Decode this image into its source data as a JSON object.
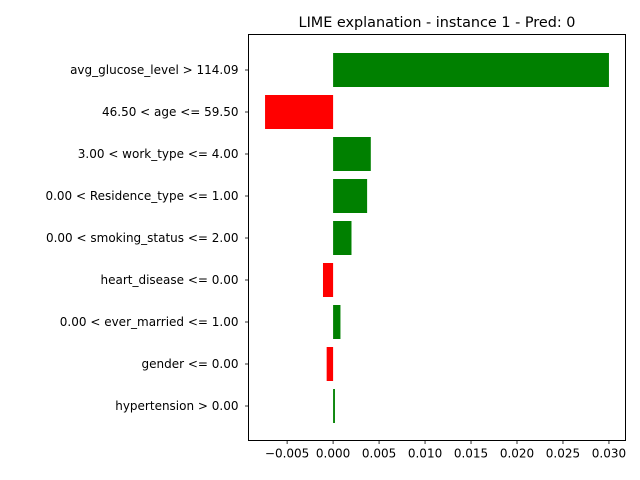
{
  "chart_data": {
    "type": "bar",
    "orientation": "horizontal",
    "title": "LIME explanation - instance 1 - Pred: 0",
    "xlabel": "",
    "ylabel": "",
    "xlim": [
      -0.0092,
      0.0318
    ],
    "grid": false,
    "categories": [
      "avg_glucose_level > 114.09",
      "46.50 < age <= 59.50",
      "3.00 < work_type <= 4.00",
      "0.00 < Residence_type <= 1.00",
      "0.00 < smoking_status <= 2.00",
      "heart_disease <= 0.00",
      "0.00 < ever_married <= 1.00",
      "gender <= 0.00",
      "hypertension > 0.00"
    ],
    "values": [
      0.03,
      -0.0074,
      0.0041,
      0.0037,
      0.002,
      -0.0011,
      0.0008,
      -0.0007,
      0.0002
    ],
    "xticks": [
      {
        "value": -0.005,
        "label": "−0.005"
      },
      {
        "value": 0.0,
        "label": "0.000"
      },
      {
        "value": 0.005,
        "label": "0.005"
      },
      {
        "value": 0.01,
        "label": "0.010"
      },
      {
        "value": 0.015,
        "label": "0.015"
      },
      {
        "value": 0.02,
        "label": "0.020"
      },
      {
        "value": 0.025,
        "label": "0.025"
      },
      {
        "value": 0.03,
        "label": "0.030"
      }
    ],
    "colors": {
      "positive": "#008000",
      "negative": "#ff0000"
    }
  }
}
